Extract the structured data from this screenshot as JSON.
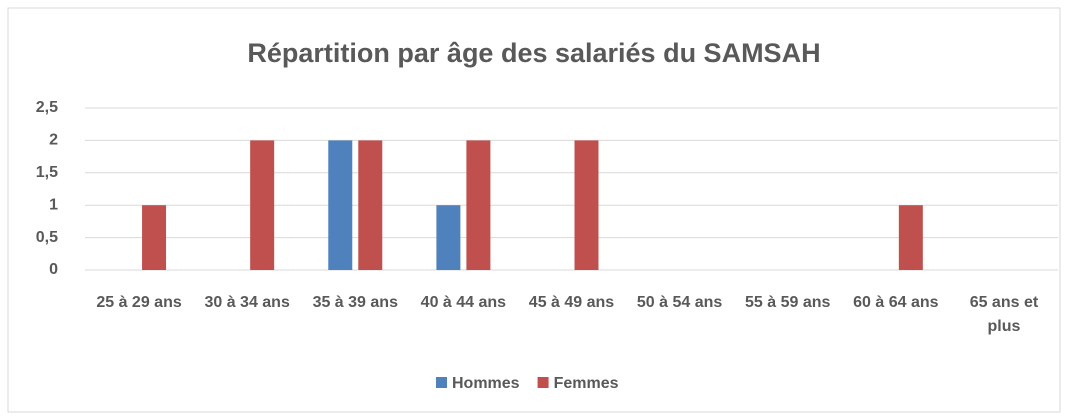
{
  "chart_data": {
    "type": "bar",
    "title": "Répartition par âge des salariés du SAMSAH",
    "categories": [
      "25 à 29 ans",
      "30 à 34 ans",
      "35 à 39 ans",
      "40 à 44 ans",
      "45 à 49 ans",
      "50 à 54 ans",
      "55 à 59 ans",
      "60 à 64 ans",
      "65 ans et plus"
    ],
    "series": [
      {
        "name": "Hommes",
        "color": "#4f81bd",
        "values": [
          0,
          0,
          2,
          1,
          0,
          0,
          0,
          0,
          0
        ]
      },
      {
        "name": "Femmes",
        "color": "#c0504d",
        "values": [
          1,
          2,
          2,
          2,
          2,
          0,
          0,
          1,
          0
        ]
      }
    ],
    "ylim": [
      0,
      2.5
    ],
    "yticks": [
      0,
      {
        "value": 0.5,
        "label": "0,5"
      },
      1,
      {
        "value": 1.5,
        "label": "1,5"
      },
      2,
      {
        "value": 2.5,
        "label": "2,5"
      }
    ],
    "grid": true,
    "legend": "bottom"
  }
}
